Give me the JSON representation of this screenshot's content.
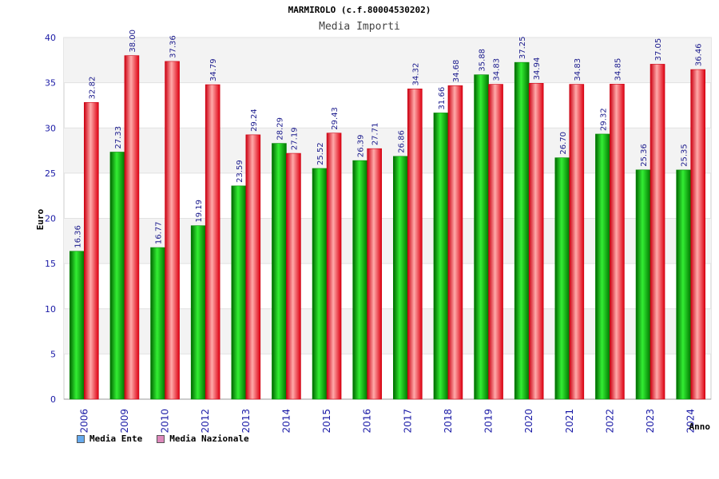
{
  "chart_data": {
    "type": "bar",
    "title": "MARMIROLO (c.f.80004530202)",
    "subtitle": "Media Importi",
    "ylabel": "Euro",
    "xlabel": "Anno",
    "ylim": [
      0,
      40
    ],
    "yticks": [
      0,
      5,
      10,
      15,
      20,
      25,
      30,
      35,
      40
    ],
    "categories": [
      "2006",
      "2009",
      "2010",
      "2012",
      "2013",
      "2014",
      "2015",
      "2016",
      "2017",
      "2018",
      "2019",
      "2020",
      "2021",
      "2022",
      "2023",
      "2024"
    ],
    "series": [
      {
        "name": "Media Ente",
        "color": "#00aa00",
        "legend_color": "#66aaee",
        "values": [
          16.36,
          27.33,
          16.77,
          19.19,
          23.59,
          28.29,
          25.52,
          26.39,
          26.86,
          31.66,
          35.88,
          37.25,
          26.7,
          29.32,
          25.36,
          25.35
        ],
        "labels": [
          "16.36",
          "27.33",
          "16.77",
          "19.19",
          "23.59",
          "28.29",
          "25.52",
          "26.39",
          "26.86",
          "31.66",
          "35.88",
          "37.25",
          "26.70",
          "29.32",
          "25.36",
          "25.35"
        ]
      },
      {
        "name": "Media Nazionale",
        "color": "#ee1122",
        "legend_color": "#dd88bb",
        "values": [
          32.82,
          38.0,
          37.36,
          34.79,
          29.24,
          27.19,
          29.43,
          27.71,
          34.32,
          34.68,
          34.83,
          34.94,
          34.83,
          34.85,
          37.05,
          36.46
        ],
        "labels": [
          "32.82",
          "38.00",
          "37.36",
          "34.79",
          "29.24",
          "27.19",
          "29.43",
          "27.71",
          "34.32",
          "34.68",
          "34.83",
          "34.94",
          "34.83",
          "34.85",
          "37.05",
          "36.46"
        ]
      }
    ],
    "legend_position": "bottom-left",
    "grid": true
  }
}
